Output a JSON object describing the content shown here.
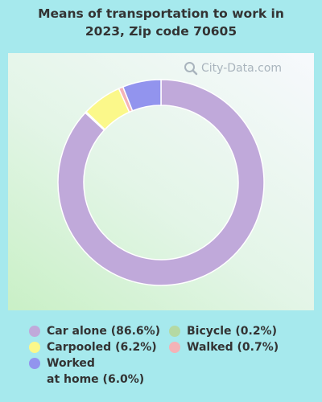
{
  "chart_data": {
    "type": "pie",
    "donut": true,
    "title_lines": [
      "Means of transportation to work in",
      "2023, Zip code 70605"
    ],
    "watermark": "City-Data.com",
    "slices": [
      {
        "label": "Car alone (86.6%)",
        "value": 86.6,
        "color": "#c0a9da"
      },
      {
        "label": "Carpooled (6.2%)",
        "value": 6.2,
        "color": "#fbf88a"
      },
      {
        "label": "Bicycle (0.2%)",
        "value": 0.2,
        "color": "#b5d9a3"
      },
      {
        "label": "Walked (0.7%)",
        "value": 0.7,
        "color": "#f4b3b7"
      },
      {
        "label": "Worked at home (6.0%)",
        "label_lines": [
          "Worked",
          "at home (6.0%)"
        ],
        "value": 6.0,
        "color": "#9294ee"
      }
    ],
    "legend_placement": "bottom"
  }
}
